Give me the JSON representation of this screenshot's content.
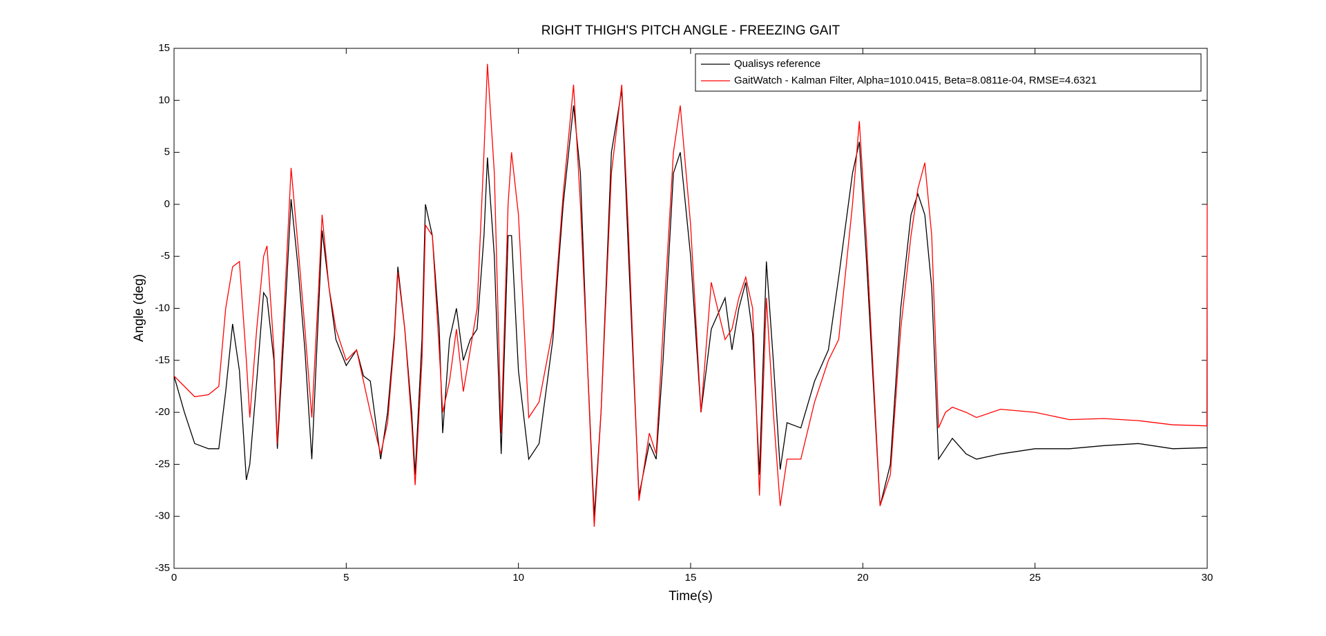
{
  "chart_data": {
    "type": "line",
    "title": "RIGHT THIGH'S PITCH ANGLE - FREEZING GAIT",
    "x_label": "Time(s)",
    "y_label": "Angle (deg)",
    "x": [
      0,
      0.3,
      0.6,
      1.0,
      1.3,
      1.5,
      1.7,
      1.9,
      2.1,
      2.2,
      2.4,
      2.6,
      2.7,
      2.9,
      3.0,
      3.2,
      3.4,
      3.6,
      3.8,
      4.0,
      4.2,
      4.3,
      4.5,
      4.7,
      5.0,
      5.3,
      5.5,
      5.7,
      6.0,
      6.2,
      6.4,
      6.5,
      6.7,
      6.9,
      7.0,
      7.2,
      7.3,
      7.5,
      7.7,
      7.8,
      8.0,
      8.2,
      8.4,
      8.6,
      8.8,
      9.0,
      9.1,
      9.3,
      9.5,
      9.7,
      9.8,
      10.0,
      10.3,
      10.6,
      11.0,
      11.3,
      11.6,
      11.8,
      12.0,
      12.2,
      12.4,
      12.7,
      13.0,
      13.2,
      13.5,
      13.8,
      14.0,
      14.2,
      14.5,
      14.7,
      15.0,
      15.3,
      15.6,
      16.0,
      16.2,
      16.4,
      16.6,
      16.8,
      17.0,
      17.2,
      17.4,
      17.6,
      17.8,
      18.2,
      18.6,
      19.0,
      19.3,
      19.7,
      19.9,
      20.1,
      20.5,
      20.8,
      21.1,
      21.4,
      21.6,
      21.8,
      22.0,
      22.2,
      22.4,
      22.6,
      23.0,
      23.3,
      24,
      25,
      26,
      27,
      28,
      29,
      29.99,
      30
    ],
    "series": [
      {
        "name": "Qualisys reference",
        "color": "#000000",
        "values": [
          -16.5,
          -20,
          -23,
          -23.5,
          -23.5,
          -18,
          -11.5,
          -16,
          -26.5,
          -25,
          -17,
          -8.5,
          -9,
          -15,
          -23.5,
          -12,
          0.5,
          -6,
          -14,
          -24.5,
          -10,
          -2.5,
          -8,
          -13,
          -15.5,
          -14,
          -16.5,
          -17,
          -24.5,
          -20,
          -12.5,
          -6,
          -12,
          -20,
          -26,
          -13,
          0,
          -3,
          -12,
          -22,
          -13,
          -10,
          -15,
          -13,
          -12,
          -3,
          4.5,
          -5,
          -24,
          -3,
          -3,
          -16,
          -24.5,
          -23,
          -13,
          0,
          9.5,
          3,
          -15,
          -30,
          -20,
          5,
          11,
          -5,
          -28,
          -23,
          -24.5,
          -15,
          3,
          5,
          -5,
          -20,
          -12,
          -9,
          -14,
          -10,
          -7.5,
          -12.5,
          -26,
          -5.5,
          -15,
          -25.5,
          -21,
          -21.5,
          -17,
          -14,
          -7,
          3,
          6,
          -5,
          -29,
          -25,
          -10,
          -1,
          1,
          -1,
          -8,
          -24.5,
          -23.5,
          -22.5,
          -24,
          -24.5,
          -24,
          -23.5,
          -23.5,
          -23.2,
          -23,
          -23.5,
          -23.4,
          -23.4
        ]
      },
      {
        "name": "GaitWatch - Kalman Filter, Alpha=1010.0415, Beta=8.0811e-04, RMSE=4.6321",
        "color": "#ff0000",
        "values": [
          -16.5,
          -17.5,
          -18.5,
          -18.3,
          -17.5,
          -10,
          -6,
          -5.5,
          -15,
          -20.5,
          -12,
          -5,
          -4,
          -14,
          -23,
          -10,
          3.5,
          -4,
          -12,
          -20.5,
          -8,
          -1,
          -8,
          -12,
          -15,
          -14,
          -17,
          -20,
          -24,
          -21,
          -13,
          -6.5,
          -12,
          -21,
          -27,
          -15,
          -2,
          -3,
          -14,
          -20,
          -17,
          -12,
          -18,
          -14,
          -10,
          5,
          13.5,
          3,
          -22,
          0,
          5,
          -1,
          -20.5,
          -19,
          -12,
          1,
          11.5,
          0,
          -15,
          -31,
          -20,
          3,
          11.5,
          -3,
          -28.5,
          -22,
          -24,
          -12,
          5,
          9.5,
          -2,
          -20,
          -7.5,
          -13,
          -12,
          -9,
          -7,
          -10,
          -28,
          -9,
          -20,
          -29,
          -24.5,
          -24.5,
          -19,
          -15,
          -13,
          0,
          8,
          -3,
          -29,
          -26,
          -12,
          -3,
          1.5,
          4,
          -3,
          -21.5,
          -20,
          -19.5,
          -20,
          -20.5,
          -19.7,
          -20,
          -20.7,
          -20.6,
          -20.8,
          -21.2,
          -21.3,
          0
        ]
      }
    ],
    "xlim": [
      0,
      30
    ],
    "xticks": [
      0,
      5,
      10,
      15,
      20,
      25,
      30
    ],
    "ylim": [
      -35,
      15
    ],
    "yticks": [
      -35,
      -30,
      -25,
      -20,
      -15,
      -10,
      -5,
      0,
      5,
      10,
      15
    ],
    "grid": false,
    "legend": "top-right"
  }
}
